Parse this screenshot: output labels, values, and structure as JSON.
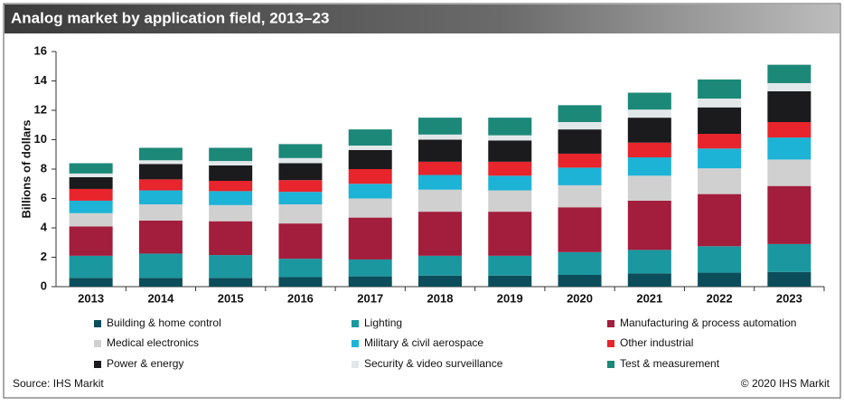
{
  "chart_data": {
    "type": "stacked_bar",
    "title": "Analog market by application field, 2013–23",
    "y_label": "Billions of dollars",
    "categories": [
      "2013",
      "2014",
      "2015",
      "2016",
      "2017",
      "2018",
      "2019",
      "2020",
      "2021",
      "2022",
      "2023"
    ],
    "series": [
      {
        "name": "Building & home control",
        "color": "#0b4d5a",
        "values": [
          0.6,
          0.6,
          0.6,
          0.65,
          0.7,
          0.75,
          0.75,
          0.8,
          0.9,
          0.95,
          1.0
        ]
      },
      {
        "name": "Lighting",
        "color": "#1b97a0",
        "values": [
          1.5,
          1.65,
          1.55,
          1.25,
          1.15,
          1.35,
          1.35,
          1.55,
          1.6,
          1.8,
          1.9
        ]
      },
      {
        "name": "Manufacturing & process automation",
        "color": "#a31d3c",
        "values": [
          2.0,
          2.25,
          2.3,
          2.4,
          2.85,
          3.0,
          3.0,
          3.05,
          3.35,
          3.55,
          3.95
        ]
      },
      {
        "name": "Medical electronics",
        "color": "#d0d0d0",
        "values": [
          0.9,
          1.1,
          1.1,
          1.3,
          1.3,
          1.5,
          1.45,
          1.5,
          1.7,
          1.75,
          1.8
        ]
      },
      {
        "name": "Military & civil aerospace",
        "color": "#1db3d6",
        "values": [
          0.85,
          0.95,
          0.95,
          0.85,
          1.0,
          1.0,
          1.0,
          1.2,
          1.25,
          1.35,
          1.5
        ]
      },
      {
        "name": "Other industrial",
        "color": "#e8242c",
        "values": [
          0.8,
          0.75,
          0.7,
          0.8,
          1.0,
          0.9,
          0.95,
          0.95,
          1.0,
          1.0,
          1.05
        ]
      },
      {
        "name": "Power & energy",
        "color": "#1b1a1c",
        "values": [
          0.8,
          1.05,
          1.05,
          1.15,
          1.3,
          1.5,
          1.45,
          1.65,
          1.7,
          1.8,
          2.1
        ]
      },
      {
        "name": "Security & video surveillance",
        "color": "#e2e8ea",
        "values": [
          0.25,
          0.25,
          0.3,
          0.35,
          0.3,
          0.35,
          0.35,
          0.5,
          0.55,
          0.6,
          0.55
        ]
      },
      {
        "name": "Test & measurement",
        "color": "#1c8878",
        "values": [
          0.7,
          0.85,
          0.9,
          0.95,
          1.1,
          1.15,
          1.2,
          1.15,
          1.15,
          1.3,
          1.25
        ]
      }
    ],
    "ylim": [
      0,
      16
    ],
    "yticks": [
      0,
      2,
      4,
      6,
      8,
      10,
      12,
      14,
      16
    ],
    "source": "Source: IHS Markit",
    "credit": "© 2020 IHS Markit"
  }
}
